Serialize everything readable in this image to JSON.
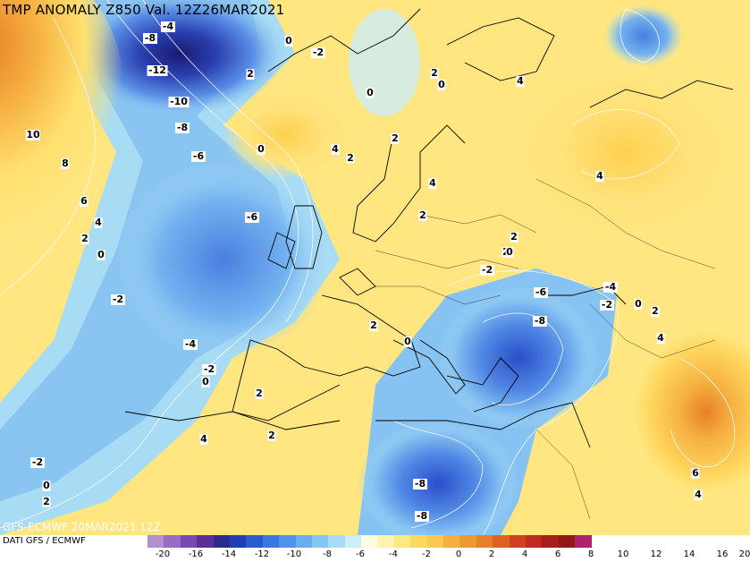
{
  "title": "TMP ANOMALY Z850 Val. 12Z26MAR2021",
  "footer": {
    "model_run": "GFS-ECMWF 20MAR2021 12Z",
    "source": "DATI GFS / ECMWF"
  },
  "colorbar": {
    "ticks": [
      "-20",
      "-16",
      "-14",
      "-12",
      "-10",
      "-8",
      "-6",
      "-4",
      "-2",
      "0",
      "2",
      "4",
      "6",
      "8",
      "10",
      "12",
      "14",
      "16",
      "20"
    ],
    "colors": [
      "#b48fd0",
      "#9b6bc4",
      "#7a49b0",
      "#5b2f96",
      "#2a2a8f",
      "#1f3fb3",
      "#2a5ad0",
      "#3a78e0",
      "#4f93ea",
      "#68aef0",
      "#86c6f2",
      "#a8dcf4",
      "#cdeef6",
      "#fffde0",
      "#fff3b0",
      "#ffe880",
      "#ffd860",
      "#ffc850",
      "#f5b040",
      "#ef9a30",
      "#e8802a",
      "#e06024",
      "#d04020",
      "#c02820",
      "#a81c1c",
      "#901818",
      "#b02070"
    ]
  },
  "contour_labels": [
    {
      "t": "-4"
    },
    {
      "t": "-8"
    },
    {
      "t": "-12"
    },
    {
      "t": "-10"
    },
    {
      "t": "-8"
    },
    {
      "t": "-6"
    },
    {
      "t": "0"
    },
    {
      "t": "-2"
    },
    {
      "t": "2"
    },
    {
      "t": "0"
    },
    {
      "t": "2"
    },
    {
      "t": "0"
    },
    {
      "t": "4"
    },
    {
      "t": "-2"
    },
    {
      "t": "10"
    },
    {
      "t": "8"
    },
    {
      "t": "6"
    },
    {
      "t": "4"
    },
    {
      "t": "2"
    },
    {
      "t": "0"
    },
    {
      "t": "-2"
    },
    {
      "t": "-4"
    },
    {
      "t": "-2"
    },
    {
      "t": "0"
    },
    {
      "t": "2"
    },
    {
      "t": "4"
    },
    {
      "t": "2"
    },
    {
      "t": "-2"
    },
    {
      "t": "0"
    },
    {
      "t": "2"
    },
    {
      "t": "-6"
    },
    {
      "t": "0"
    },
    {
      "t": "4"
    },
    {
      "t": "2"
    },
    {
      "t": "2"
    },
    {
      "t": "4"
    },
    {
      "t": "2"
    },
    {
      "t": "2"
    },
    {
      "t": "4"
    },
    {
      "t": "2"
    },
    {
      "t": "0"
    },
    {
      "t": "-2"
    },
    {
      "t": "-6"
    },
    {
      "t": "-4"
    },
    {
      "t": "-2"
    },
    {
      "t": "0"
    },
    {
      "t": "2"
    },
    {
      "t": "-8"
    },
    {
      "t": "4"
    },
    {
      "t": "2"
    },
    {
      "t": "0"
    },
    {
      "t": "-8"
    },
    {
      "t": "-8"
    },
    {
      "t": "6"
    },
    {
      "t": "4"
    }
  ]
}
